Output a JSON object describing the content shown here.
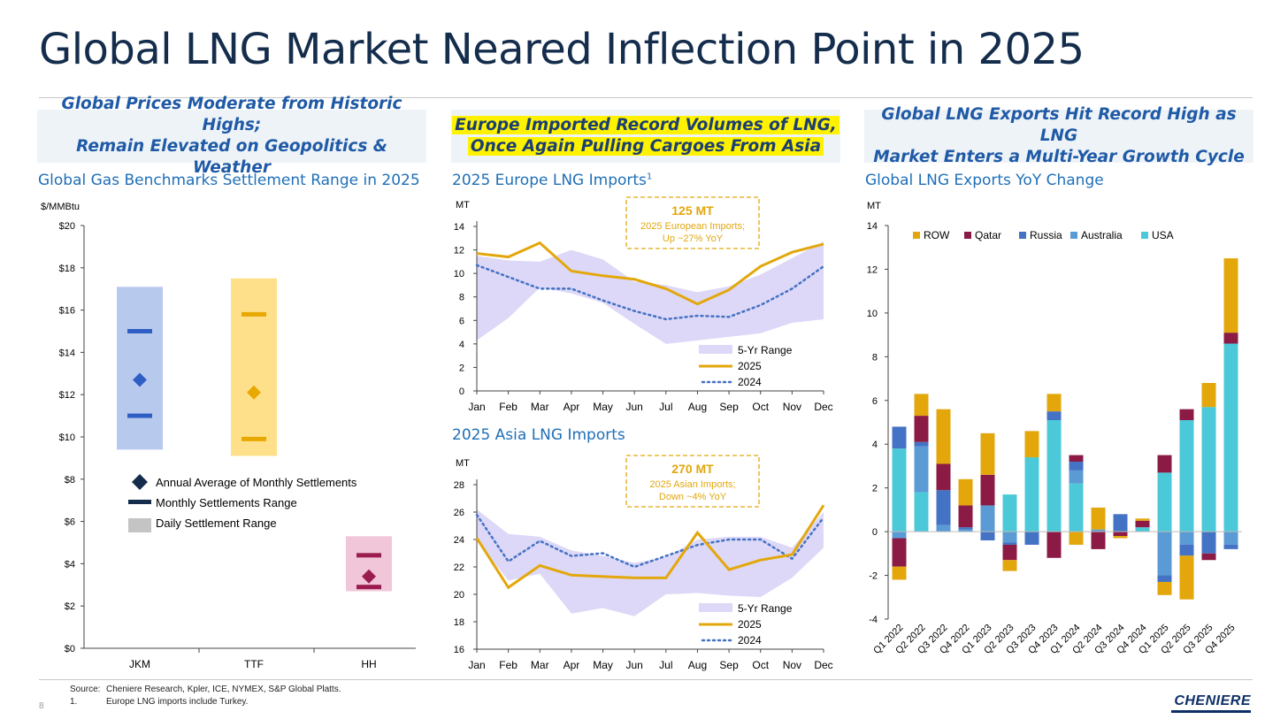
{
  "page": {
    "title": "Global LNG Market Neared Inflection Point in 2025",
    "page_number": "8",
    "source_label": "Source:",
    "source_text": "Cheniere Research, Kpler, ICE, NYMEX, S&P Global Platts.",
    "note_num": "1.",
    "note_text": "Europe LNG imports include Turkey.",
    "logo": "CHENIERE"
  },
  "panels": {
    "left": {
      "header_line1": "Global Prices Moderate from Historic Highs;",
      "header_line2": "Remain Elevated on Geopolitics & Weather",
      "subtitle": "Global Gas Benchmarks Settlement Range in 2025"
    },
    "middle": {
      "header_line1": "Europe Imported Record Volumes of LNG,",
      "header_line2": "Once Again Pulling Cargoes From Asia",
      "subtitle_top": "2025 Europe LNG Imports",
      "subtitle_top_sup": "1",
      "subtitle_bottom": "2025 Asia LNG Imports"
    },
    "right": {
      "header_line1": "Global LNG Exports Hit Record High as LNG",
      "header_line2": "Market Enters a Multi-Year Growth Cycle",
      "subtitle": "Global LNG Exports YoY Change"
    }
  },
  "colors": {
    "title": "#142d4c",
    "header_text": "#1f5aa6",
    "highlight": "#fff200",
    "jkm": "#2f5fc4",
    "ttf": "#e8a800",
    "hh": "#9b1d4f",
    "usa": "#4cc9d8",
    "australia": "#5b9bd5",
    "russia": "#4472c4",
    "qatar": "#8b1a44",
    "row": "#e3a70c",
    "range_fill": "#ddd8f7",
    "line_2025": "#e3a70c",
    "line_2024": "#4472c4"
  },
  "chart_data": [
    {
      "type": "range",
      "ylabel": "$/MMBtu",
      "ylim": [
        0,
        20
      ],
      "yticks": [
        "$0",
        "$2",
        "$4",
        "$6",
        "$8",
        "$10",
        "$12",
        "$14",
        "$16",
        "$18",
        "$20"
      ],
      "categories": [
        "JKM",
        "TTF",
        "HH"
      ],
      "daily_range": [
        [
          9.4,
          17.1
        ],
        [
          9.1,
          17.5
        ],
        [
          2.7,
          5.3
        ]
      ],
      "monthly_range": [
        [
          11.0,
          15.0
        ],
        [
          9.9,
          15.8
        ],
        [
          2.9,
          4.4
        ]
      ],
      "annual_average": [
        12.7,
        12.1,
        3.4
      ],
      "legend": [
        "Annual Average of Monthly Settlements",
        "Monthly Settlements Range",
        "Daily Settlement Range"
      ]
    },
    {
      "type": "line",
      "ylabel": "MT",
      "ylim": [
        0,
        14
      ],
      "yticks": [
        "0",
        "2",
        "4",
        "6",
        "8",
        "10",
        "12",
        "14"
      ],
      "categories": [
        "Jan",
        "Feb",
        "Mar",
        "Apr",
        "May",
        "Jun",
        "Jul",
        "Aug",
        "Sep",
        "Oct",
        "Nov",
        "Dec"
      ],
      "range_low": [
        4.3,
        6.2,
        8.8,
        8.3,
        7.5,
        5.7,
        4.0,
        4.3,
        4.6,
        4.9,
        5.8,
        6.1
      ],
      "range_high": [
        11.5,
        11.1,
        11.0,
        12.0,
        11.2,
        9.3,
        9.0,
        8.4,
        8.9,
        9.9,
        11.3,
        12.7
      ],
      "series": [
        {
          "name": "2025",
          "values": [
            11.7,
            11.4,
            12.6,
            10.2,
            9.8,
            9.5,
            8.7,
            7.4,
            8.6,
            10.6,
            11.8,
            12.5
          ]
        },
        {
          "name": "2024",
          "values": [
            10.7,
            9.7,
            8.7,
            8.7,
            7.7,
            6.8,
            6.1,
            6.4,
            6.3,
            7.3,
            8.7,
            10.6
          ]
        }
      ],
      "legend": [
        "5-Yr Range",
        "2025",
        "2024"
      ],
      "annotation": {
        "line1": "125 MT",
        "line2": "2025 European Imports;",
        "line3": "Up ~27% YoY"
      }
    },
    {
      "type": "line",
      "ylabel": "MT",
      "ylim": [
        16,
        28
      ],
      "yticks": [
        "16",
        "18",
        "20",
        "22",
        "24",
        "26",
        "28"
      ],
      "categories": [
        "Jan",
        "Feb",
        "Mar",
        "Apr",
        "May",
        "Jun",
        "Jul",
        "Aug",
        "Sep",
        "Oct",
        "Nov",
        "Dec"
      ],
      "range_low": [
        23.9,
        21.0,
        21.5,
        18.6,
        19.0,
        18.4,
        20.0,
        20.1,
        19.9,
        19.8,
        21.2,
        23.4
      ],
      "range_high": [
        26.2,
        24.4,
        24.2,
        23.2,
        22.8,
        22.3,
        22.7,
        24.0,
        24.2,
        24.2,
        23.4,
        26.0
      ],
      "series": [
        {
          "name": "2025",
          "values": [
            24.1,
            20.5,
            22.1,
            21.4,
            21.3,
            21.2,
            21.2,
            24.5,
            21.8,
            22.5,
            22.9,
            26.5
          ]
        },
        {
          "name": "2024",
          "values": [
            25.8,
            22.4,
            23.9,
            22.8,
            23.0,
            22.0,
            22.8,
            23.6,
            24.0,
            24.0,
            22.6,
            25.6
          ]
        }
      ],
      "legend": [
        "5-Yr Range",
        "2025",
        "2024"
      ],
      "annotation": {
        "line1": "270 MT",
        "line2": "2025 Asian Imports;",
        "line3": "Down ~4% YoY"
      }
    },
    {
      "type": "bar",
      "stacked": true,
      "ylabel": "MT",
      "ylim": [
        -4,
        14
      ],
      "yticks": [
        "-4",
        "-2",
        "0",
        "2",
        "4",
        "6",
        "8",
        "10",
        "12",
        "14"
      ],
      "categories": [
        "Q1 2022",
        "Q2 2022",
        "Q3 2022",
        "Q4 2022",
        "Q1 2023",
        "Q2 2023",
        "Q3 2023",
        "Q4 2023",
        "Q1 2024",
        "Q2 2024",
        "Q3 2024",
        "Q4 2024",
        "Q1 2025",
        "Q2 2025",
        "Q3 2025",
        "Q4 2025"
      ],
      "legend": [
        "ROW",
        "Qatar",
        "Russia",
        "Australia",
        "USA"
      ],
      "series": [
        {
          "name": "USA",
          "values": [
            3.8,
            1.8,
            0.0,
            0.0,
            0.0,
            1.7,
            3.4,
            5.1,
            2.2,
            0.0,
            0.0,
            0.2,
            2.7,
            5.1,
            5.7,
            8.6
          ]
        },
        {
          "name": "Australia",
          "values": [
            -0.3,
            2.1,
            0.3,
            0.1,
            1.2,
            -0.5,
            0.0,
            0.0,
            0.6,
            0.1,
            0.0,
            0.0,
            -2.0,
            -0.6,
            0.0,
            -0.6
          ]
        },
        {
          "name": "Russia",
          "values": [
            1.0,
            0.2,
            1.6,
            0.1,
            -0.4,
            -0.1,
            -0.6,
            0.4,
            0.4,
            0.0,
            0.8,
            0.0,
            -0.3,
            -0.5,
            -1.0,
            -0.2
          ]
        },
        {
          "name": "Qatar",
          "values": [
            -1.3,
            1.2,
            1.2,
            1.0,
            1.4,
            -0.7,
            0.0,
            -1.2,
            0.3,
            -0.8,
            -0.2,
            0.3,
            0.8,
            0.5,
            -0.3,
            0.5
          ]
        },
        {
          "name": "ROW",
          "values": [
            -0.6,
            1.0,
            2.5,
            1.2,
            1.9,
            -0.5,
            1.2,
            0.8,
            -0.6,
            1.0,
            -0.1,
            0.1,
            -0.6,
            -2.0,
            1.1,
            3.4
          ]
        }
      ]
    }
  ]
}
